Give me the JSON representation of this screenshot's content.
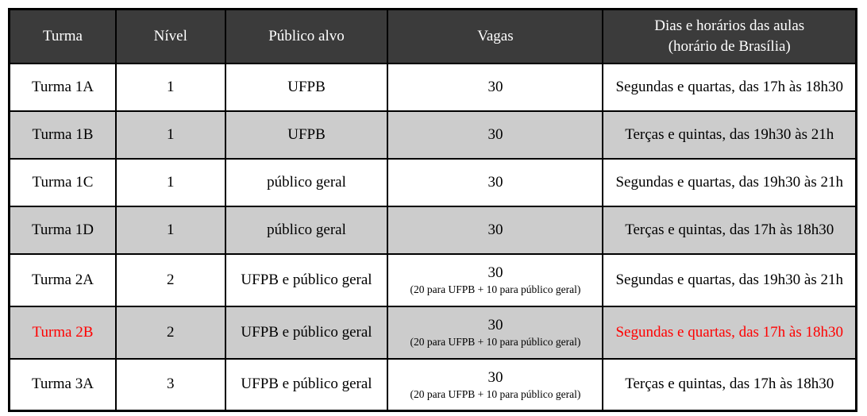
{
  "colors": {
    "header_bg": "#3b3b3b",
    "header_text": "#ffffff",
    "row_bg": "#ffffff",
    "row_shaded_bg": "#cccccc",
    "border": "#000000",
    "body_text": "#000000",
    "highlight_text": "#ff0000"
  },
  "table": {
    "columns": [
      {
        "label": "Turma"
      },
      {
        "label": "Nível"
      },
      {
        "label": "Público alvo"
      },
      {
        "label": "Vagas"
      },
      {
        "label": "Dias e horários das aulas",
        "sublabel": "(horário de Brasília)"
      }
    ],
    "rows": [
      {
        "turma": "Turma 1A",
        "nivel": "1",
        "publico": "UFPB",
        "vagas": "30",
        "vagas_note": "",
        "dias": "Segundas e quartas, das 17h às 18h30",
        "shaded": false,
        "highlight": false
      },
      {
        "turma": "Turma 1B",
        "nivel": "1",
        "publico": "UFPB",
        "vagas": "30",
        "vagas_note": "",
        "dias": "Terças e quintas, das 19h30 às 21h",
        "shaded": true,
        "highlight": false
      },
      {
        "turma": "Turma 1C",
        "nivel": "1",
        "publico": "público geral",
        "vagas": "30",
        "vagas_note": "",
        "dias": "Segundas e quartas, das 19h30 às 21h",
        "shaded": false,
        "highlight": false
      },
      {
        "turma": "Turma 1D",
        "nivel": "1",
        "publico": "público geral",
        "vagas": "30",
        "vagas_note": "",
        "dias": "Terças e quintas, das 17h às 18h30",
        "shaded": true,
        "highlight": false
      },
      {
        "turma": "Turma 2A",
        "nivel": "2",
        "publico": "UFPB e público geral",
        "vagas": "30",
        "vagas_note": "(20 para UFPB + 10 para público geral)",
        "dias": "Segundas e quartas, das 19h30 às 21h",
        "shaded": false,
        "highlight": false
      },
      {
        "turma": "Turma 2B",
        "nivel": "2",
        "publico": "UFPB e público geral",
        "vagas": "30",
        "vagas_note": "(20 para UFPB + 10 para público geral)",
        "dias": "Segundas e quartas, das 17h às 18h30",
        "shaded": true,
        "highlight": true
      },
      {
        "turma": "Turma 3A",
        "nivel": "3",
        "publico": "UFPB e público geral",
        "vagas": "30",
        "vagas_note": "(20 para UFPB + 10 para público geral)",
        "dias": "Terças e quintas, das 17h às 18h30",
        "shaded": false,
        "highlight": false
      }
    ]
  }
}
